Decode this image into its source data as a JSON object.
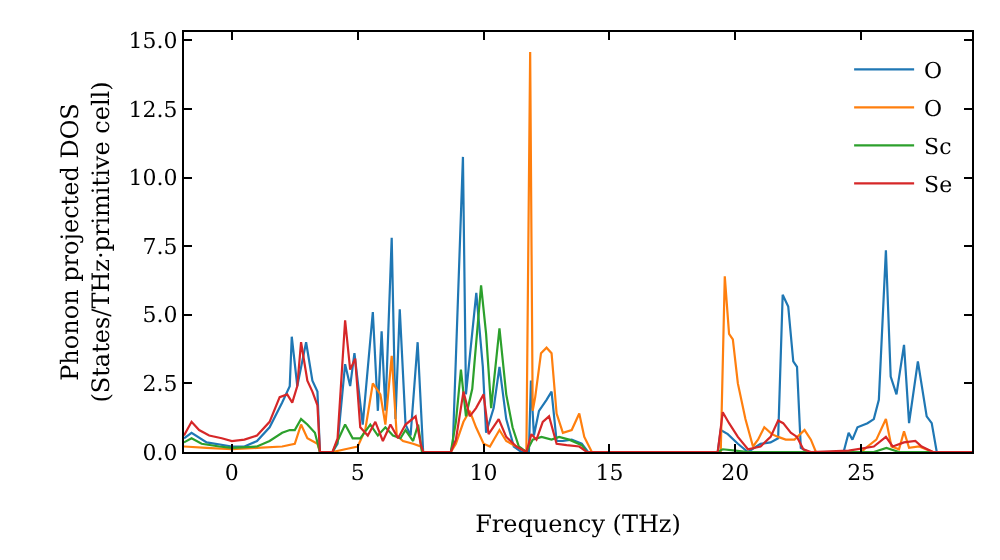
{
  "chart_data": {
    "type": "line",
    "xlabel": "Frequency (THz)",
    "ylabel": "Phonon projected DOS\n(States/THz·primitive cell)",
    "xlim": [
      -1.9,
      29.4
    ],
    "ylim": [
      0,
      15.3
    ],
    "xticks": [
      0,
      5,
      10,
      15,
      20,
      25
    ],
    "yticks": [
      {
        "value": 0,
        "label": "0.0"
      },
      {
        "value": 2.5,
        "label": "2.5"
      },
      {
        "value": 5,
        "label": "5.0"
      },
      {
        "value": 7.5,
        "label": "7.5"
      },
      {
        "value": 10,
        "label": "10.0"
      },
      {
        "value": 12.5,
        "label": "12.5"
      },
      {
        "value": 15,
        "label": "15.0"
      }
    ],
    "legend": "top right",
    "marker": "none",
    "line_style": "solid",
    "series": [
      {
        "name": "O",
        "color": "#1f77b4",
        "x": [
          -1.9,
          -1.6,
          -1.0,
          0,
          0.5,
          1.0,
          1.5,
          2.0,
          2.3,
          2.38,
          2.6,
          2.95,
          3.2,
          3.4,
          3.5,
          4.0,
          4.2,
          4.5,
          4.7,
          4.87,
          5.2,
          5.6,
          5.8,
          5.95,
          6.1,
          6.35,
          6.5,
          6.67,
          6.9,
          7.1,
          7.38,
          7.6,
          8.7,
          8.78,
          9.18,
          9.3,
          9.71,
          9.97,
          10.1,
          10.4,
          10.63,
          10.9,
          11.2,
          11.5,
          11.8,
          11.88,
          12.0,
          12.2,
          12.5,
          12.7,
          12.9,
          13.15,
          13.5,
          13.9,
          14.15,
          19.3,
          19.42,
          19.7,
          20.1,
          20.5,
          21.0,
          21.4,
          21.7,
          21.88,
          22.1,
          22.3,
          22.45,
          22.6,
          22.9,
          24.3,
          24.5,
          24.65,
          24.85,
          25.25,
          25.5,
          25.7,
          25.98,
          26.17,
          26.4,
          26.7,
          26.9,
          27.25,
          27.6,
          27.8,
          28.0,
          29.4
        ],
        "values": [
          0.5,
          0.7,
          0.35,
          0.2,
          0.2,
          0.4,
          0.9,
          1.8,
          2.4,
          4.2,
          2.4,
          4.0,
          2.6,
          2.2,
          0,
          0,
          0.3,
          3.2,
          2.4,
          3.6,
          1.0,
          5.1,
          1.5,
          4.4,
          1.5,
          7.8,
          1.2,
          5.2,
          1.0,
          0.6,
          4.0,
          0,
          0,
          0.3,
          10.75,
          2.1,
          5.8,
          3.1,
          0.7,
          1.6,
          3.1,
          1.2,
          0.2,
          0,
          0,
          2.6,
          0.6,
          1.5,
          1.9,
          2.2,
          0.4,
          0.4,
          0.45,
          0.3,
          0,
          0,
          0.8,
          0.65,
          0.3,
          0,
          0.3,
          0.35,
          0.5,
          5.73,
          5.3,
          3.3,
          3.1,
          0.15,
          0,
          0,
          0.7,
          0.45,
          0.9,
          1.05,
          1.2,
          1.9,
          7.35,
          2.75,
          2.1,
          3.9,
          1.05,
          3.3,
          1.3,
          1.05,
          0,
          0
        ]
      },
      {
        "name": "O",
        "color": "#ff7f0e",
        "x": [
          -1.9,
          -1.0,
          0,
          1.0,
          2.0,
          2.5,
          2.75,
          3.0,
          3.4,
          3.5,
          4.0,
          4.5,
          5.0,
          5.3,
          5.6,
          5.9,
          6.1,
          6.35,
          6.55,
          6.8,
          7.2,
          7.5,
          7.6,
          8.7,
          8.9,
          9.2,
          9.45,
          9.7,
          10.0,
          10.25,
          10.63,
          10.9,
          11.3,
          11.7,
          11.85,
          11.95,
          12.05,
          12.28,
          12.5,
          12.7,
          12.9,
          13.15,
          13.5,
          13.8,
          14.0,
          14.3,
          19.42,
          19.58,
          19.75,
          19.9,
          20.1,
          20.4,
          20.7,
          20.9,
          21.15,
          21.45,
          21.7,
          22.0,
          22.35,
          22.75,
          23.0,
          23.2,
          25.0,
          25.25,
          25.6,
          25.98,
          26.2,
          26.5,
          26.7,
          26.9,
          27.3,
          27.85,
          29.4
        ],
        "values": [
          0.2,
          0.15,
          0.1,
          0.15,
          0.2,
          0.3,
          1.0,
          0.5,
          0.3,
          0,
          0,
          0.1,
          0.2,
          0.8,
          2.5,
          2.1,
          1.0,
          3.5,
          0.6,
          0.4,
          0.3,
          0.2,
          0,
          0,
          0.3,
          1.1,
          1.5,
          0.9,
          0.3,
          0.2,
          0.8,
          0.4,
          0.2,
          0,
          14.57,
          1.5,
          2.0,
          3.6,
          3.8,
          3.6,
          1.4,
          0.7,
          0.8,
          1.4,
          0.55,
          0,
          0,
          6.4,
          4.3,
          4.1,
          2.5,
          1.2,
          0.2,
          0.45,
          0.9,
          0.65,
          0.55,
          0.45,
          0.45,
          0.8,
          0.45,
          0,
          0,
          0.2,
          0.45,
          1.2,
          0.2,
          0.1,
          0.75,
          0.15,
          0.2,
          0,
          0
        ]
      },
      {
        "name": "Sc",
        "color": "#2ca02c",
        "x": [
          -1.9,
          -1.6,
          -1.2,
          -0.5,
          0,
          1.0,
          1.5,
          2.0,
          2.3,
          2.5,
          2.75,
          3.0,
          3.3,
          3.5,
          4.0,
          4.2,
          4.5,
          4.8,
          5.1,
          5.5,
          5.8,
          6.1,
          6.4,
          6.7,
          6.9,
          7.2,
          7.4,
          7.55,
          8.7,
          8.9,
          9.1,
          9.3,
          9.55,
          9.9,
          10.1,
          10.3,
          10.63,
          10.9,
          11.15,
          11.4,
          11.7,
          11.95,
          12.3,
          12.7,
          13.0,
          13.4,
          13.9,
          14.1,
          19.3,
          19.5,
          20.0,
          20.5,
          25.5,
          26.0,
          26.5,
          29.4
        ],
        "values": [
          0.35,
          0.5,
          0.3,
          0.2,
          0.15,
          0.2,
          0.4,
          0.7,
          0.8,
          0.8,
          1.2,
          1.0,
          0.7,
          0,
          0,
          0.4,
          1.0,
          0.5,
          0.5,
          1.0,
          0.6,
          0.9,
          0.6,
          0.5,
          0.8,
          0.4,
          1.0,
          0,
          0,
          1.1,
          3.0,
          1.3,
          2.3,
          6.07,
          4.3,
          1.6,
          4.5,
          2.1,
          0.9,
          0.2,
          0,
          0.45,
          0.55,
          0.45,
          0.55,
          0.45,
          0.25,
          0,
          0,
          0.1,
          0.05,
          0,
          0,
          0.15,
          0,
          0
        ]
      },
      {
        "name": "Se",
        "color": "#d62728",
        "x": [
          -1.9,
          -1.6,
          -1.3,
          -0.9,
          -0.4,
          0,
          0.5,
          1.0,
          1.5,
          1.9,
          2.2,
          2.4,
          2.6,
          2.75,
          3.0,
          3.2,
          3.4,
          3.5,
          4.0,
          4.2,
          4.5,
          4.7,
          4.9,
          5.1,
          5.4,
          5.7,
          6.0,
          6.3,
          6.6,
          6.9,
          7.3,
          7.5,
          7.6,
          8.7,
          8.9,
          9.2,
          9.45,
          9.7,
          10.0,
          10.2,
          10.6,
          10.9,
          11.3,
          11.7,
          11.9,
          12.1,
          12.35,
          12.6,
          12.9,
          13.3,
          13.8,
          14.1,
          19.3,
          19.5,
          19.75,
          20.1,
          20.5,
          21.0,
          21.4,
          21.7,
          21.9,
          22.2,
          22.45,
          22.7,
          23.0,
          24.5,
          25.5,
          25.98,
          26.25,
          26.7,
          27.15,
          27.4,
          27.85,
          29.4
        ],
        "values": [
          0.6,
          1.1,
          0.8,
          0.6,
          0.5,
          0.4,
          0.45,
          0.6,
          1.1,
          2.0,
          2.1,
          1.8,
          2.4,
          4.0,
          2.6,
          2.2,
          1.7,
          0,
          0,
          0.5,
          4.8,
          3.0,
          3.4,
          0.9,
          0.6,
          1.1,
          0.4,
          1.0,
          0.5,
          1.0,
          1.3,
          0.3,
          0,
          0,
          0.45,
          2.2,
          1.3,
          1.6,
          2.1,
          0.65,
          1.2,
          0.55,
          0.2,
          0,
          0.65,
          0.45,
          1.1,
          1.3,
          0.3,
          0.25,
          0.2,
          0,
          0,
          1.45,
          1.05,
          0.55,
          0.1,
          0.2,
          0.55,
          1.15,
          1.05,
          0.7,
          0.55,
          0.1,
          0,
          0.05,
          0.2,
          0.55,
          0.2,
          0.35,
          0.4,
          0.2,
          0,
          0
        ]
      }
    ]
  }
}
